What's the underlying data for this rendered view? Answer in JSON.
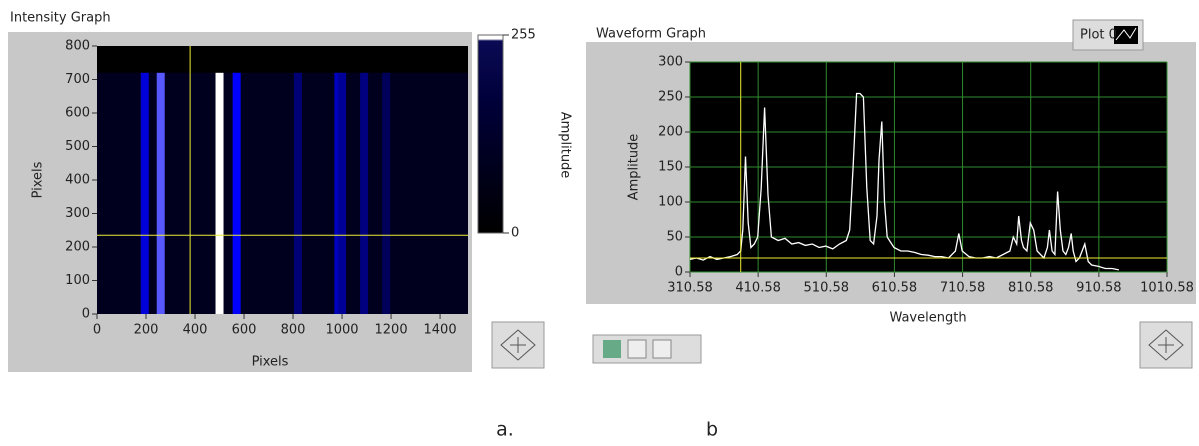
{
  "chart_data": [
    {
      "type": "intensity",
      "title": "Intensity Graph",
      "xlabel": "Pixels",
      "ylabel": "Pixels",
      "zlabel": "Amplitude",
      "x": [
        195,
        260,
        500,
        570,
        820,
        985,
        1000,
        1090,
        1180
      ],
      "values": [
        140,
        200,
        255,
        170,
        60,
        120,
        90,
        70,
        40
      ],
      "stripe_extent": [
        0,
        720
      ],
      "cursor": [
        380,
        235
      ],
      "xlim": [
        0,
        1514
      ],
      "xticks": [
        0,
        200,
        400,
        600,
        800,
        1000,
        1200,
        1400
      ],
      "ylim": [
        0,
        800
      ],
      "yticks": [
        0,
        100,
        200,
        300,
        400,
        500,
        600,
        700,
        800
      ],
      "zlim": [
        0,
        255
      ],
      "zticks": [
        0,
        255
      ]
    },
    {
      "type": "line",
      "title": "Waveform Graph",
      "xlabel": "Wavelength",
      "ylabel": "Amplitude",
      "grid": true,
      "cursor": [
        385,
        20
      ],
      "x": [
        310.58,
        320,
        330,
        340,
        350,
        360,
        370,
        380,
        385,
        388,
        392,
        396,
        400,
        405,
        410,
        415,
        420,
        425,
        430,
        440,
        450,
        460,
        470,
        480,
        490,
        500,
        510,
        520,
        530,
        540,
        545,
        550,
        555,
        560,
        565,
        570,
        575,
        580,
        585,
        588,
        592,
        596,
        600,
        610,
        620,
        630,
        640,
        650,
        660,
        670,
        680,
        690,
        700,
        705,
        710,
        720,
        730,
        740,
        750,
        760,
        770,
        780,
        785,
        790,
        793,
        797,
        800,
        805,
        810,
        815,
        820,
        825,
        830,
        835,
        838,
        842,
        846,
        850,
        854,
        858,
        862,
        866,
        870,
        873,
        877,
        882,
        890,
        895,
        900,
        910,
        920,
        930,
        940
      ],
      "series": [
        {
          "name": "Plot 0",
          "color": "#ffffff",
          "values": [
            18,
            20,
            17,
            22,
            18,
            20,
            22,
            25,
            30,
            60,
            165,
            70,
            35,
            40,
            50,
            120,
            235,
            110,
            50,
            45,
            48,
            40,
            42,
            38,
            40,
            35,
            37,
            33,
            40,
            45,
            60,
            150,
            255,
            255,
            250,
            120,
            45,
            40,
            80,
            160,
            215,
            100,
            50,
            35,
            30,
            30,
            28,
            25,
            24,
            22,
            22,
            20,
            30,
            55,
            30,
            22,
            20,
            20,
            22,
            20,
            25,
            30,
            50,
            40,
            80,
            45,
            35,
            30,
            70,
            60,
            30,
            25,
            20,
            35,
            60,
            30,
            25,
            115,
            60,
            30,
            25,
            35,
            55,
            30,
            15,
            20,
            40,
            15,
            10,
            8,
            5,
            5,
            3
          ]
        }
      ],
      "xlim": [
        310.58,
        1010.58
      ],
      "xticks": [
        310.58,
        410.58,
        510.58,
        610.58,
        710.58,
        810.58,
        910.58,
        1010.58
      ],
      "ylim": [
        0,
        300
      ],
      "yticks": [
        0,
        50,
        100,
        150,
        200,
        250,
        300
      ]
    }
  ],
  "captions": [
    "a.",
    "b"
  ]
}
